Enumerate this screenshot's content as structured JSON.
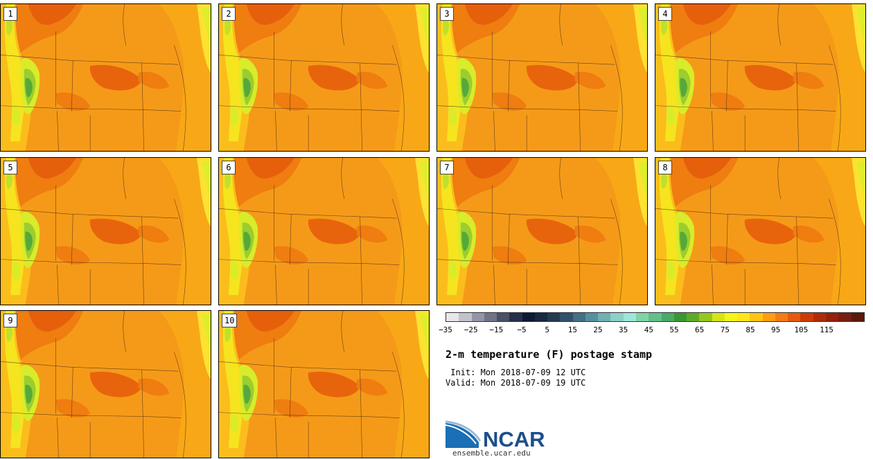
{
  "panels": [
    {
      "label": "1"
    },
    {
      "label": "2"
    },
    {
      "label": "3"
    },
    {
      "label": "4"
    },
    {
      "label": "5"
    },
    {
      "label": "6"
    },
    {
      "label": "7"
    },
    {
      "label": "8"
    },
    {
      "label": "9"
    },
    {
      "label": "10"
    }
  ],
  "colorbar": {
    "colors": [
      "#e6e6eb",
      "#c2c2cc",
      "#9496a8",
      "#6f7488",
      "#4a5066",
      "#26304a",
      "#0e1a33",
      "#17283f",
      "#243a52",
      "#32526a",
      "#427085",
      "#56909e",
      "#6fb0b3",
      "#8cd0c8",
      "#9fe6da",
      "#7fd4a6",
      "#63c08a",
      "#4aab66",
      "#3b9636",
      "#5eab2a",
      "#96c71e",
      "#d4e61a",
      "#f5f51a",
      "#ffe61a",
      "#ffc414",
      "#ff9e14",
      "#f57c14",
      "#e65a0f",
      "#cc3c0a",
      "#b02a0a",
      "#94220f",
      "#7a1e0f",
      "#5c1a0a"
    ],
    "ticks": [
      "−35",
      "−25",
      "−15",
      "−5",
      "5",
      "15",
      "25",
      "35",
      "45",
      "55",
      "65",
      "75",
      "85",
      "95",
      "105",
      "115"
    ]
  },
  "title": "2-m temperature (F) postage stamp",
  "init_line": " Init: Mon 2018-07-09 12 UTC",
  "valid_line": "Valid: Mon 2018-07-09 19 UTC",
  "logo": {
    "text": "NCAR",
    "url": "ensemble.ucar.edu"
  }
}
